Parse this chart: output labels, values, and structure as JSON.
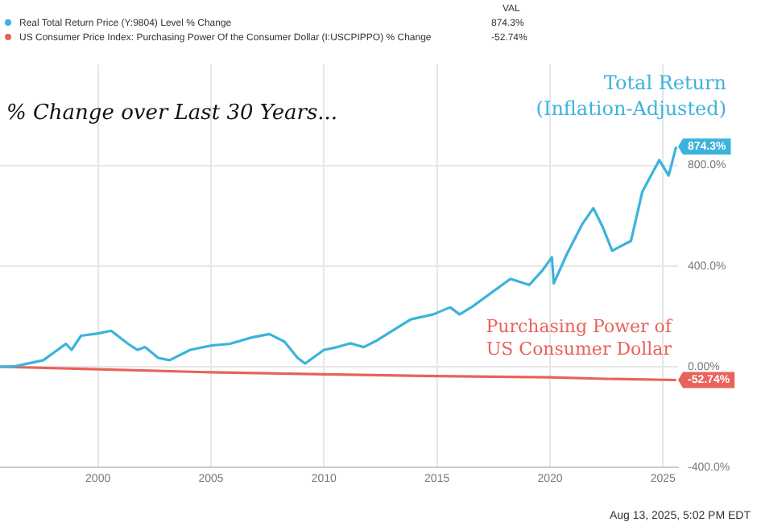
{
  "chart_data": {
    "type": "line",
    "title": "% Change over Last 30 Years...",
    "legend_title": "VAL",
    "x": [
      "1995-09",
      "1996-05",
      "1997-08",
      "1998-08",
      "1998-11",
      "1999-04",
      "2000-01",
      "2000-08",
      "2001-05",
      "2001-10",
      "2002-02",
      "2002-09",
      "2003-03",
      "2004-02",
      "2005-01",
      "2005-11",
      "2006-11",
      "2007-08",
      "2008-04",
      "2008-11",
      "2009-03",
      "2010-01",
      "2010-08",
      "2011-03",
      "2011-10",
      "2012-05",
      "2013-11",
      "2014-11",
      "2015-08",
      "2016-01",
      "2016-08",
      "2018-04",
      "2019-02",
      "2019-09",
      "2020-02",
      "2020-03",
      "2020-10",
      "2021-06",
      "2021-12",
      "2022-05",
      "2022-10",
      "2023-08",
      "2024-02",
      "2024-11",
      "2025-04",
      "2025-08"
    ],
    "series": [
      {
        "name": "Real Total Return Price (Y:9804) Level % Change",
        "color": "#3bb3dc",
        "values": [
          0,
          2,
          26,
          91,
          67,
          123,
          132,
          143,
          91,
          67,
          78,
          35,
          26,
          67,
          84,
          91,
          117,
          130,
          100,
          35,
          13,
          67,
          78,
          93,
          78,
          104,
          188,
          208,
          236,
          208,
          240,
          349,
          325,
          383,
          435,
          331,
          448,
          565,
          630,
          555,
          461,
          500,
          695,
          821,
          760,
          874.3
        ],
        "value_labels": [
          null,
          null,
          null,
          null,
          null,
          null,
          null,
          null,
          null,
          null,
          null,
          null,
          null,
          null,
          null,
          null,
          null,
          null,
          null,
          null,
          null,
          null,
          null,
          null,
          null,
          null,
          null,
          null,
          null,
          null,
          null,
          null,
          null,
          null,
          null,
          null,
          null,
          null,
          null,
          null,
          null,
          null,
          null,
          null,
          null,
          "874.3%"
        ]
      },
      {
        "name": "US Consumer Price Index: Purchasing Power Of the Consumer Dollar (I:USCPIPPO) % Change",
        "color": "#e8635a",
        "x": [
          "1995-09",
          "2000-01",
          "2005-01",
          "2010-01",
          "2015-01",
          "2020-01",
          "2022-06",
          "2025-08"
        ],
        "values": [
          0,
          -10,
          -22,
          -30,
          -37,
          -42,
          -48,
          -52.74
        ],
        "value_labels": [
          null,
          null,
          null,
          null,
          null,
          null,
          null,
          "-52.74%"
        ]
      }
    ],
    "xlim": [
      "1995-09",
      "2025-09"
    ],
    "xticks": [
      {
        "value": "2000-01",
        "label": "2000"
      },
      {
        "value": "2005-01",
        "label": "2005"
      },
      {
        "value": "2010-01",
        "label": "2010"
      },
      {
        "value": "2015-01",
        "label": "2015"
      },
      {
        "value": "2020-01",
        "label": "2020"
      },
      {
        "value": "2025-01",
        "label": "2025"
      }
    ],
    "ylim": [
      -400,
      1200
    ],
    "yticks": [
      {
        "value": -400,
        "label": "-400.0%"
      },
      {
        "value": 0,
        "label": "0.00%"
      },
      {
        "value": 400,
        "label": "400.0%"
      },
      {
        "value": 800,
        "label": "800.0%"
      }
    ],
    "grid": true,
    "legend": "top left",
    "marker": "none",
    "line_style": "solid",
    "annotations": [
      "Total Return (Inflation-Adjusted)",
      "Purchasing Power of US Consumer Dollar",
      "Aug 13, 2025, 5:02 PM EDT"
    ]
  }
}
